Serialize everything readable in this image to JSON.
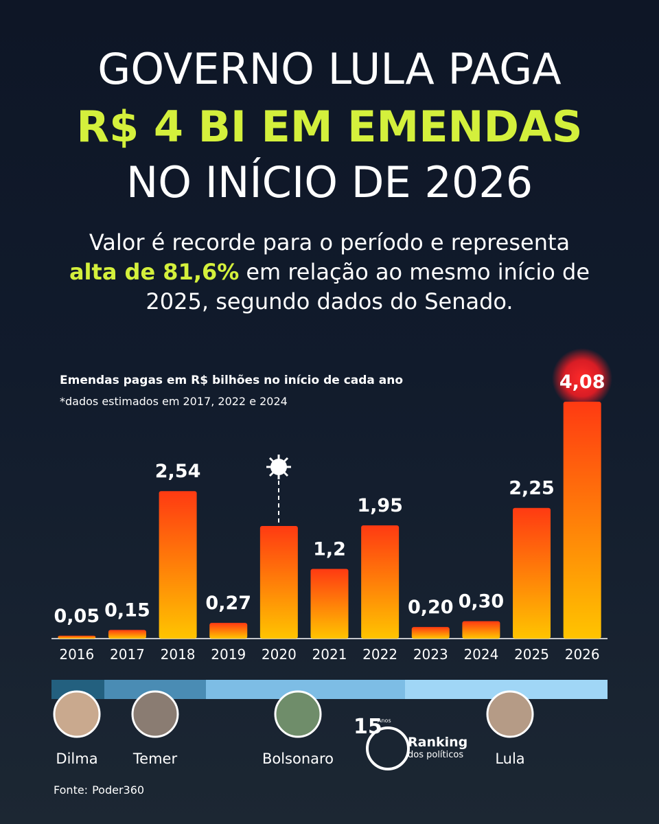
{
  "chart_data": {
    "type": "bar",
    "title_lines": [
      "GOVERNO LULA PAGA",
      "R$ 4 BI EM EMENDAS",
      "NO INÍCIO DE 2026"
    ],
    "subtitle": [
      "Valor é recorde para o período e representa",
      "alta de 81,6%",
      "em relação ao mesmo início de",
      "2025, segundo dados do Senado."
    ],
    "chart_title": "Emendas pagas em R$ bilhões no início de cada ano",
    "note": "*dados estimados em 2017, 2022 e 2024",
    "categories": [
      "2016",
      "2017",
      "2018",
      "2019",
      "2020",
      "2021",
      "2022",
      "2023",
      "2024",
      "2025",
      "2026"
    ],
    "values": [
      0.05,
      0.15,
      2.54,
      0.27,
      1.94,
      1.2,
      1.95,
      0.2,
      0.3,
      2.25,
      4.08
    ],
    "value_labels": [
      "0,05",
      "0,15",
      "2,54",
      "0,27",
      null,
      "1,2",
      "1,95",
      "0,20",
      "0,30",
      "2,25",
      "4,08"
    ],
    "ylim": [
      0,
      4.08
    ],
    "color": [
      "#ff3a12",
      "#ffc400"
    ],
    "presidents": [
      "Dilma",
      "Temer",
      "Bolsonaro",
      "Lula"
    ],
    "source_label": "Fonte:",
    "source": "Poder360",
    "logo": [
      "15",
      "Anos",
      "Ranking",
      "dos políticos"
    ]
  }
}
